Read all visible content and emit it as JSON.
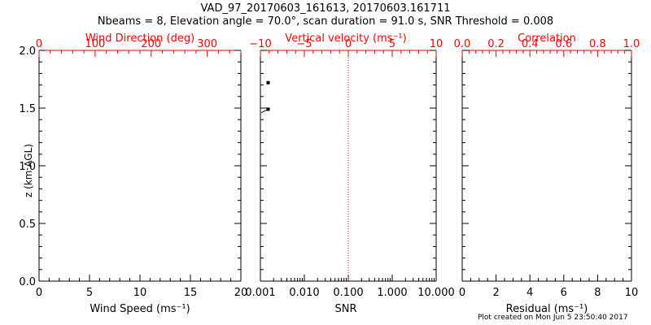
{
  "title_line1": "VAD_97_20170603_161613, 20170603.161711",
  "title_line2": "Nbeams = 8, Elevation angle = 70.0°, scan duration = 91.0 s, SNR Threshold = 0.008",
  "footer": "Plot created on Mon Jun  5 23:50:40 2017",
  "colors": {
    "axis": "#000000",
    "top_axis": "#ff0000",
    "ref_line": "#ff0000"
  },
  "chart_data": [
    {
      "type": "scatter",
      "title": "",
      "xlabel_bottom": "Wind Speed (ms⁻¹)",
      "xlabel_top": "Wind Direction (deg)",
      "ylabel": "z (km AGL)",
      "xlim_bottom": [
        0,
        20
      ],
      "xlim_top": [
        0,
        360
      ],
      "ylim": [
        0,
        2
      ],
      "bottom_ticks": [
        "0",
        "5",
        "10",
        "15",
        "20"
      ],
      "top_ticks": [
        "0",
        "100",
        "200",
        "300"
      ],
      "y_ticks": [
        "0.0",
        "0.5",
        "1.0",
        "1.5",
        "2.0"
      ],
      "grid": false,
      "series": []
    },
    {
      "type": "scatter",
      "title": "",
      "xlabel_bottom": "SNR",
      "xlabel_top": "Vertical velocity (ms⁻¹)",
      "xscale_bottom": "log",
      "xlim_bottom": [
        0.001,
        10
      ],
      "xlim_top": [
        -10,
        10
      ],
      "ylim": [
        0,
        2
      ],
      "bottom_ticks": [
        "0.001",
        "0.010",
        "0.100",
        "1.000",
        "10.000"
      ],
      "top_ticks": [
        "−10",
        "−5",
        "0",
        "5",
        "10"
      ],
      "reference_line_x_top": 0,
      "grid": false,
      "series": [
        {
          "x": [
            0.0015,
            0.0015
          ],
          "y": [
            1.72,
            1.49
          ]
        }
      ],
      "segment": {
        "x": [
          0.00105,
          0.0015
        ],
        "y": [
          1.46,
          1.49
        ]
      }
    },
    {
      "type": "scatter",
      "title": "",
      "xlabel_bottom": "Residual (ms⁻¹)",
      "xlabel_top": "Correlation",
      "xlim_bottom": [
        0,
        10
      ],
      "xlim_top": [
        0,
        1
      ],
      "ylim": [
        0,
        2
      ],
      "bottom_ticks": [
        "0",
        "2",
        "4",
        "6",
        "8",
        "10"
      ],
      "top_ticks": [
        "0.0",
        "0.2",
        "0.4",
        "0.6",
        "0.8",
        "1.0"
      ],
      "grid": false,
      "series": []
    }
  ]
}
